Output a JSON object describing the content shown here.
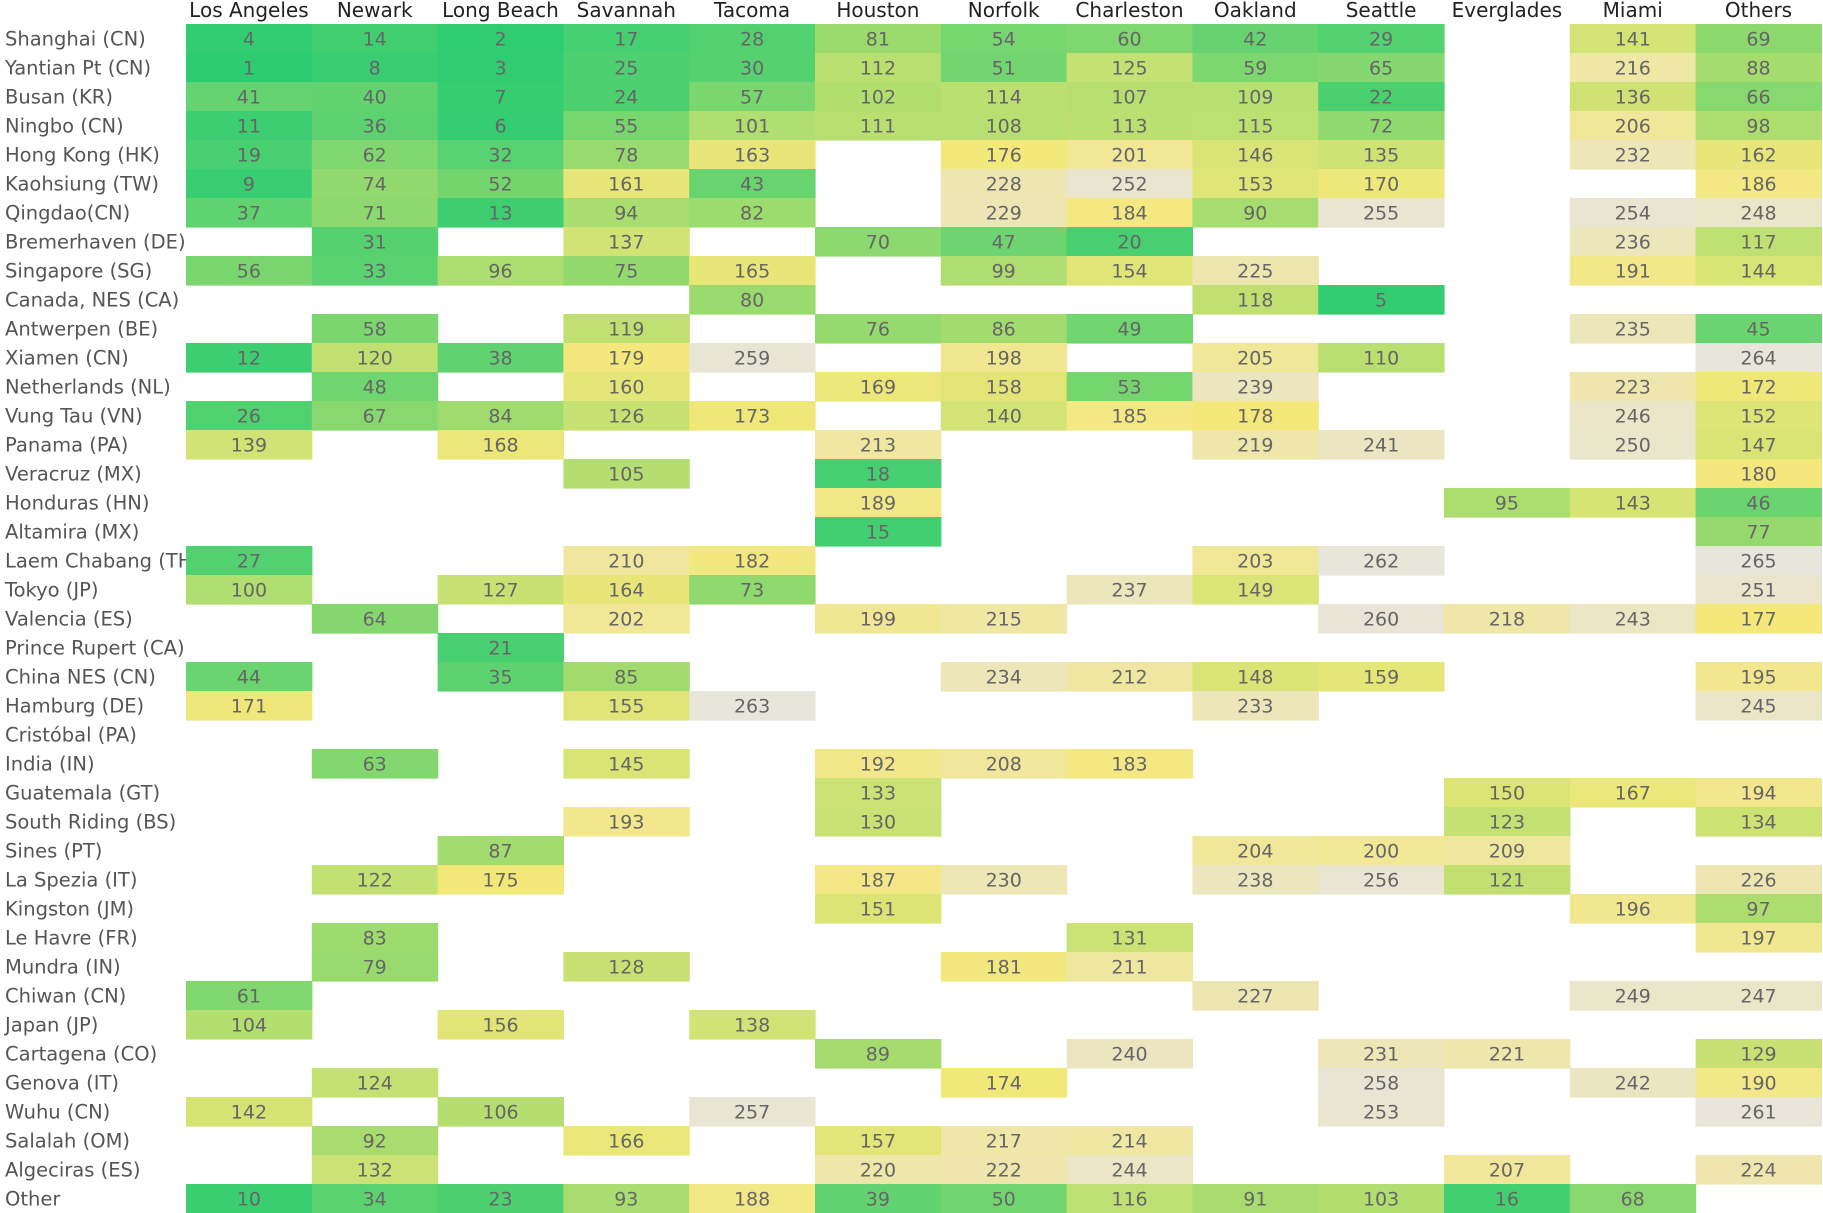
{
  "chart_data": {
    "type": "heatmap",
    "title": "",
    "columns": [
      "Los Angeles",
      "Newark",
      "Long Beach",
      "Savannah",
      "Tacoma",
      "Houston",
      "Norfolk",
      "Charleston",
      "Oakland",
      "Seattle",
      "Everglades",
      "Miami",
      "Others"
    ],
    "rows": [
      {
        "label": "Shanghai (CN)",
        "values": [
          4,
          14,
          2,
          17,
          28,
          81,
          54,
          60,
          42,
          29,
          null,
          141,
          69
        ]
      },
      {
        "label": "Yantian Pt (CN)",
        "values": [
          1,
          8,
          3,
          25,
          30,
          112,
          51,
          125,
          59,
          65,
          null,
          216,
          88
        ]
      },
      {
        "label": "Busan (KR)",
        "values": [
          41,
          40,
          7,
          24,
          57,
          102,
          114,
          107,
          109,
          22,
          null,
          136,
          66
        ]
      },
      {
        "label": "Ningbo (CN)",
        "values": [
          11,
          36,
          6,
          55,
          101,
          111,
          108,
          113,
          115,
          72,
          null,
          206,
          98
        ]
      },
      {
        "label": "Hong Kong (HK)",
        "values": [
          19,
          62,
          32,
          78,
          163,
          null,
          176,
          201,
          146,
          135,
          null,
          232,
          162
        ]
      },
      {
        "label": "Kaohsiung (TW)",
        "values": [
          9,
          74,
          52,
          161,
          43,
          null,
          228,
          252,
          153,
          170,
          null,
          null,
          186
        ]
      },
      {
        "label": "Qingdao(CN)",
        "values": [
          37,
          71,
          13,
          94,
          82,
          null,
          229,
          184,
          90,
          255,
          null,
          254,
          248
        ]
      },
      {
        "label": "Bremerhaven (DE)",
        "values": [
          null,
          31,
          null,
          137,
          null,
          70,
          47,
          20,
          null,
          null,
          null,
          236,
          117
        ]
      },
      {
        "label": "Singapore (SG)",
        "values": [
          56,
          33,
          96,
          75,
          165,
          null,
          99,
          154,
          225,
          null,
          null,
          191,
          144
        ]
      },
      {
        "label": "Canada, NES (CA)",
        "values": [
          null,
          null,
          null,
          null,
          80,
          null,
          null,
          null,
          118,
          5,
          null,
          null,
          null
        ]
      },
      {
        "label": "Antwerpen (BE)",
        "values": [
          null,
          58,
          null,
          119,
          null,
          76,
          86,
          49,
          null,
          null,
          null,
          235,
          45
        ]
      },
      {
        "label": "Xiamen (CN)",
        "values": [
          12,
          120,
          38,
          179,
          259,
          null,
          198,
          null,
          205,
          110,
          null,
          null,
          264
        ]
      },
      {
        "label": "Netherlands (NL)",
        "values": [
          null,
          48,
          null,
          160,
          null,
          169,
          158,
          53,
          239,
          null,
          null,
          223,
          172
        ]
      },
      {
        "label": "Vung Tau (VN)",
        "values": [
          26,
          67,
          84,
          126,
          173,
          null,
          140,
          185,
          178,
          null,
          null,
          246,
          152
        ]
      },
      {
        "label": "Panama (PA)",
        "values": [
          139,
          null,
          168,
          null,
          null,
          213,
          null,
          null,
          219,
          241,
          null,
          250,
          147
        ]
      },
      {
        "label": "Veracruz (MX)",
        "values": [
          null,
          null,
          null,
          105,
          null,
          18,
          null,
          null,
          null,
          null,
          null,
          null,
          180
        ]
      },
      {
        "label": "Honduras (HN)",
        "values": [
          null,
          null,
          null,
          null,
          null,
          189,
          null,
          null,
          null,
          null,
          95,
          143,
          46
        ]
      },
      {
        "label": "Altamira (MX)",
        "values": [
          null,
          null,
          null,
          null,
          null,
          15,
          null,
          null,
          null,
          null,
          null,
          null,
          77
        ]
      },
      {
        "label": "Laem Chabang (TH)",
        "values": [
          27,
          null,
          null,
          210,
          182,
          null,
          null,
          null,
          203,
          262,
          null,
          null,
          265
        ]
      },
      {
        "label": "Tokyo (JP)",
        "values": [
          100,
          null,
          127,
          164,
          73,
          null,
          null,
          237,
          149,
          null,
          null,
          null,
          251
        ]
      },
      {
        "label": "Valencia (ES)",
        "values": [
          null,
          64,
          null,
          202,
          null,
          199,
          215,
          null,
          null,
          260,
          218,
          243,
          177
        ]
      },
      {
        "label": "Prince Rupert (CA)",
        "values": [
          null,
          null,
          21,
          null,
          null,
          null,
          null,
          null,
          null,
          null,
          null,
          null,
          null
        ]
      },
      {
        "label": "China NES (CN)",
        "values": [
          44,
          null,
          35,
          85,
          null,
          null,
          234,
          212,
          148,
          159,
          null,
          null,
          195
        ]
      },
      {
        "label": "Hamburg (DE)",
        "values": [
          171,
          null,
          null,
          155,
          263,
          null,
          null,
          null,
          233,
          null,
          null,
          null,
          245
        ]
      },
      {
        "label": "Cristóbal (PA)",
        "values": [
          null,
          null,
          null,
          null,
          null,
          null,
          null,
          null,
          null,
          null,
          null,
          null,
          null
        ]
      },
      {
        "label": "India (IN)",
        "values": [
          null,
          63,
          null,
          145,
          null,
          192,
          208,
          183,
          null,
          null,
          null,
          null,
          null
        ]
      },
      {
        "label": "Guatemala (GT)",
        "values": [
          null,
          null,
          null,
          null,
          null,
          133,
          null,
          null,
          null,
          null,
          150,
          167,
          194
        ]
      },
      {
        "label": "South Riding (BS)",
        "values": [
          null,
          null,
          null,
          193,
          null,
          130,
          null,
          null,
          null,
          null,
          123,
          null,
          134
        ]
      },
      {
        "label": "Sines (PT)",
        "values": [
          null,
          null,
          87,
          null,
          null,
          null,
          null,
          null,
          204,
          200,
          209,
          null,
          null
        ]
      },
      {
        "label": "La Spezia (IT)",
        "values": [
          null,
          122,
          175,
          null,
          null,
          187,
          230,
          null,
          238,
          256,
          121,
          null,
          226
        ]
      },
      {
        "label": "Kingston (JM)",
        "values": [
          null,
          null,
          null,
          null,
          null,
          151,
          null,
          null,
          null,
          null,
          null,
          196,
          97
        ]
      },
      {
        "label": "Le Havre (FR)",
        "values": [
          null,
          83,
          null,
          null,
          null,
          null,
          null,
          131,
          null,
          null,
          null,
          null,
          197
        ]
      },
      {
        "label": "Mundra (IN)",
        "values": [
          null,
          79,
          null,
          128,
          null,
          null,
          181,
          211,
          null,
          null,
          null,
          null,
          null
        ]
      },
      {
        "label": "Chiwan (CN)",
        "values": [
          61,
          null,
          null,
          null,
          null,
          null,
          null,
          null,
          227,
          null,
          null,
          249,
          247
        ]
      },
      {
        "label": "Japan (JP)",
        "values": [
          104,
          null,
          156,
          null,
          138,
          null,
          null,
          null,
          null,
          null,
          null,
          null,
          null
        ]
      },
      {
        "label": "Cartagena (CO)",
        "values": [
          null,
          null,
          null,
          null,
          null,
          89,
          null,
          240,
          null,
          231,
          221,
          null,
          129
        ]
      },
      {
        "label": "Genova (IT)",
        "values": [
          null,
          124,
          null,
          null,
          null,
          null,
          174,
          null,
          null,
          258,
          null,
          242,
          190
        ]
      },
      {
        "label": "Wuhu (CN)",
        "values": [
          142,
          null,
          106,
          null,
          257,
          null,
          null,
          null,
          null,
          253,
          null,
          null,
          261
        ]
      },
      {
        "label": "Salalah (OM)",
        "values": [
          null,
          92,
          null,
          166,
          null,
          157,
          217,
          214,
          null,
          null,
          null,
          null,
          null
        ]
      },
      {
        "label": "Algeciras (ES)",
        "values": [
          null,
          132,
          null,
          null,
          null,
          220,
          222,
          244,
          null,
          null,
          207,
          null,
          224
        ]
      },
      {
        "label": "Other",
        "values": [
          10,
          34,
          23,
          93,
          188,
          39,
          50,
          116,
          91,
          103,
          16,
          68,
          null
        ]
      }
    ],
    "color_scale": {
      "low_value": 1,
      "high_value": 265,
      "stops": [
        "#2ecc71",
        "#a6dc6e",
        "#f4e87a",
        "#e8e5dc"
      ]
    },
    "legend": "none",
    "grid": false
  }
}
